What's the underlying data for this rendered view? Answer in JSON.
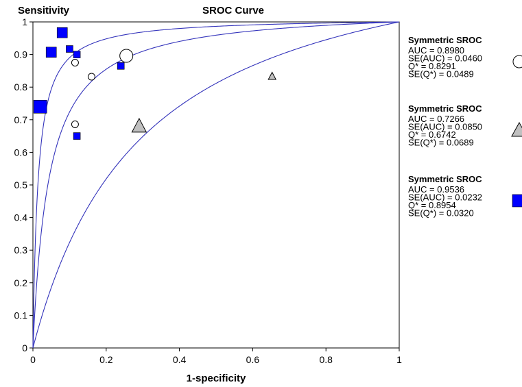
{
  "chart_data": {
    "type": "scatter",
    "title": "SROC Curve",
    "ylabel": "Sensitivity",
    "xlabel": "1-specificity",
    "xlim": [
      0,
      1
    ],
    "ylim": [
      0,
      1
    ],
    "x_ticks": [
      "0",
      "0.2",
      "0.4",
      "0.6",
      "0.8",
      "1"
    ],
    "y_ticks": [
      "0",
      "0.1",
      "0.2",
      "0.3",
      "0.4",
      "0.5",
      "0.6",
      "0.7",
      "0.8",
      "0.9",
      "1"
    ],
    "grid": false,
    "legend_position": "right",
    "series": [
      {
        "marker": "circle",
        "fill": "#ffffff",
        "points": [
          {
            "x": 0.115,
            "y": 0.875,
            "size": "small"
          },
          {
            "x": 0.16,
            "y": 0.832,
            "size": "small"
          },
          {
            "x": 0.115,
            "y": 0.686,
            "size": "small"
          },
          {
            "x": 0.255,
            "y": 0.896,
            "size": "large"
          }
        ],
        "legend": {
          "heading": "Symmetric SROC",
          "lines": [
            "AUC = 0.8980",
            "SE(AUC) = 0.0460",
            "Q* = 0.8291",
            "SE(Q*) = 0.0489"
          ]
        },
        "auc": 0.898
      },
      {
        "marker": "triangle",
        "fill": "#c0c0c0",
        "points": [
          {
            "x": 0.653,
            "y": 0.833,
            "size": "small"
          },
          {
            "x": 0.29,
            "y": 0.68,
            "size": "large"
          }
        ],
        "legend": {
          "heading": "Symmetric SROC",
          "lines": [
            "AUC = 0.7266",
            "SE(AUC) = 0.0850",
            "Q* = 0.6742",
            "SE(Q*) = 0.0689"
          ]
        },
        "auc": 0.7266
      },
      {
        "marker": "square",
        "fill": "#0000ff",
        "points": [
          {
            "x": 0.08,
            "y": 0.967,
            "size": "medium"
          },
          {
            "x": 0.05,
            "y": 0.907,
            "size": "medium"
          },
          {
            "x": 0.1,
            "y": 0.917,
            "size": "small"
          },
          {
            "x": 0.12,
            "y": 0.9,
            "size": "small"
          },
          {
            "x": 0.24,
            "y": 0.865,
            "size": "small"
          },
          {
            "x": 0.02,
            "y": 0.74,
            "size": "large"
          },
          {
            "x": 0.12,
            "y": 0.65,
            "size": "small"
          }
        ],
        "legend": {
          "heading": "Symmetric SROC",
          "lines": [
            "AUC = 0.9536",
            "SE(AUC) = 0.0232",
            "Q* = 0.8954",
            "SE(Q*) = 0.0320"
          ]
        },
        "auc": 0.9536
      }
    ],
    "curves": [
      {
        "name_hidden": "",
        "D": 3.16,
        "color": "#3333bb"
      },
      {
        "name_hidden": "",
        "D": 1.46,
        "color": "#3333bb"
      },
      {
        "name_hidden": "",
        "D": 4.29,
        "color": "#3333bb"
      }
    ]
  }
}
